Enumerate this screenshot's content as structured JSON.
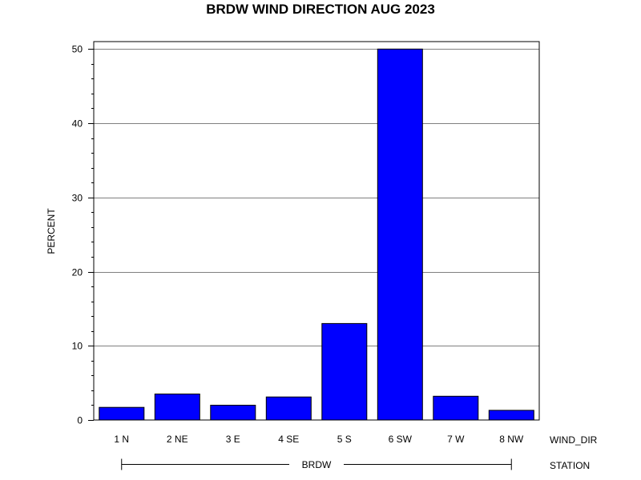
{
  "chart_data": {
    "type": "bar",
    "title": "BRDW WIND DIRECTION AUG 2023",
    "ylabel": "PERCENT",
    "xlabel": "WIND_DIR",
    "group_label": "STATION",
    "group_value": "BRDW",
    "categories": [
      "1 N",
      "2 NE",
      "3 E",
      "4 SE",
      "5 S",
      "6 SW",
      "7 W",
      "8 NW"
    ],
    "values": [
      1.7,
      3.5,
      2.0,
      3.1,
      13.0,
      50.0,
      3.2,
      1.3
    ],
    "ylim": [
      0,
      51
    ],
    "yticks": [
      0,
      10,
      20,
      30,
      40,
      50
    ],
    "grid": true,
    "bar_color": "#0000FF"
  }
}
